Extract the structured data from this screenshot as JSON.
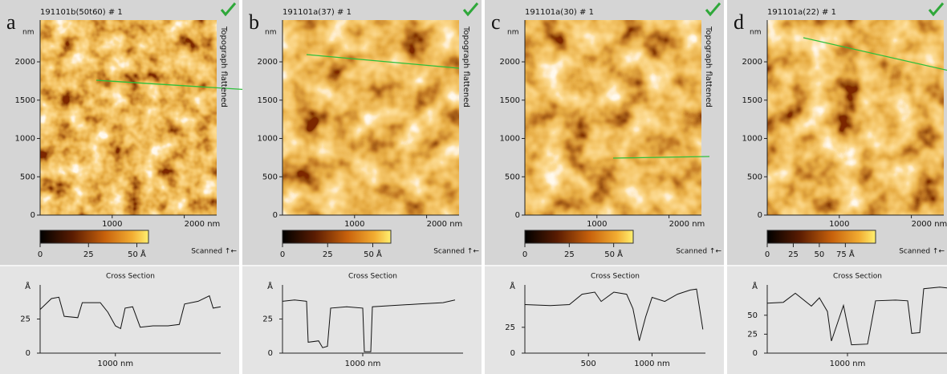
{
  "panels": [
    {
      "letter": "a",
      "file": "191101b(50t60) # 1",
      "unit": "nm",
      "side": "Topograph flattened",
      "image": {
        "xlim": [
          0,
          2450
        ],
        "ylim": [
          0,
          2545
        ],
        "xticks": [
          1000,
          {
            "value": 2000,
            "label": "2000 nm"
          }
        ],
        "yticks": [
          0,
          500,
          1000,
          1500,
          2000
        ]
      },
      "colorbar": {
        "lim": [
          0,
          56
        ],
        "ticks": [
          0,
          25,
          {
            "value": 50,
            "label": "50 Å"
          }
        ]
      },
      "scanned": "Scanned ↑←",
      "cross_section": {
        "title": "Cross Section",
        "y_label": "Å",
        "xlim": [
          0,
          2400
        ],
        "ylim": [
          0,
          50
        ],
        "xticks": [
          {
            "value": 1000,
            "label": "1000 nm"
          }
        ],
        "yticks": [
          0,
          25
        ],
        "x": [
          0,
          150,
          250,
          320,
          500,
          560,
          800,
          900,
          1000,
          1070,
          1130,
          1230,
          1330,
          1500,
          1700,
          1850,
          1920,
          2100,
          2250,
          2300,
          2400
        ],
        "values": [
          32,
          40,
          41,
          27,
          26,
          37,
          37,
          30,
          20,
          18,
          33,
          34,
          19,
          20,
          20,
          21,
          36,
          38,
          42,
          33,
          34
        ]
      }
    },
    {
      "letter": "b",
      "file": "191101a(37) # 1",
      "unit": "nm",
      "side": "Topograph flattened",
      "image": {
        "xlim": [
          0,
          2450
        ],
        "ylim": [
          0,
          2545
        ],
        "xticks": [
          1000,
          {
            "value": 2000,
            "label": "2000 nm"
          }
        ],
        "yticks": [
          0,
          500,
          1000,
          1500,
          2000
        ]
      },
      "colorbar": {
        "lim": [
          0,
          60
        ],
        "ticks": [
          0,
          25,
          {
            "value": 50,
            "label": "50 Å"
          }
        ]
      },
      "scanned": "Scanned ↑←",
      "cross_section": {
        "title": "Cross Section",
        "y_label": "Å",
        "xlim": [
          0,
          2250
        ],
        "ylim": [
          0,
          50
        ],
        "xticks": [
          {
            "value": 1000,
            "label": "1000 nm"
          }
        ],
        "yticks": [
          0,
          25
        ],
        "x": [
          0,
          150,
          300,
          320,
          450,
          500,
          560,
          600,
          800,
          1000,
          1020,
          1100,
          1120,
          1400,
          1700,
          2000,
          2150
        ],
        "values": [
          38,
          39,
          38,
          8,
          9,
          4,
          5,
          33,
          34,
          33,
          1,
          1,
          34,
          35,
          36,
          37,
          39
        ]
      }
    },
    {
      "letter": "c",
      "file": "191101a(30) # 1",
      "unit": "nm",
      "side": "Topograph flattened",
      "image": {
        "xlim": [
          0,
          2450
        ],
        "ylim": [
          0,
          2545
        ],
        "xticks": [
          1000,
          {
            "value": 2000,
            "label": "2000 nm"
          }
        ],
        "yticks": [
          0,
          500,
          1000,
          1500,
          2000
        ]
      },
      "colorbar": {
        "lim": [
          0,
          61
        ],
        "ticks": [
          0,
          25,
          {
            "value": 50,
            "label": "50 Å"
          }
        ]
      },
      "scanned": "Scanned ↑←",
      "cross_section": {
        "title": "Cross Section",
        "y_label": "Å",
        "xlim": [
          0,
          1420
        ],
        "ylim": [
          0,
          66
        ],
        "xticks": [
          500,
          {
            "value": 1000,
            "label": "1000 nm"
          }
        ],
        "yticks": [
          0,
          25
        ],
        "x": [
          0,
          200,
          350,
          450,
          550,
          600,
          700,
          800,
          850,
          900,
          950,
          1000,
          1100,
          1200,
          1300,
          1350,
          1400
        ],
        "values": [
          47,
          46,
          47,
          57,
          59,
          50,
          59,
          57,
          43,
          12,
          35,
          54,
          50,
          57,
          61,
          62,
          23
        ]
      }
    },
    {
      "letter": "d",
      "file": "191101a(22) # 1",
      "unit": "nm",
      "side": "Topograph flattened",
      "image": {
        "xlim": [
          0,
          2450
        ],
        "ylim": [
          0,
          2545
        ],
        "xticks": [
          1000,
          {
            "value": 2000,
            "label": "2000 nm"
          }
        ],
        "yticks": [
          0,
          500,
          1000,
          1500,
          2000
        ]
      },
      "colorbar": {
        "lim": [
          0,
          104
        ],
        "ticks": [
          0,
          25,
          50,
          {
            "value": 75,
            "label": "75 Å"
          }
        ]
      },
      "scanned": "Scanned ↑←",
      "cross_section": {
        "title": "Cross Section",
        "y_label": "Å",
        "xlim": [
          0,
          2250
        ],
        "ylim": [
          0,
          90
        ],
        "xticks": [
          {
            "value": 1000,
            "label": "1000 nm"
          }
        ],
        "yticks": [
          0,
          25,
          50
        ],
        "x": [
          0,
          200,
          350,
          550,
          650,
          750,
          800,
          950,
          1050,
          1250,
          1350,
          1600,
          1750,
          1800,
          1900,
          1950,
          2150,
          2250
        ],
        "values": [
          66,
          67,
          79,
          62,
          73,
          55,
          16,
          63,
          11,
          12,
          69,
          70,
          69,
          26,
          27,
          85,
          87,
          86
        ]
      }
    }
  ]
}
